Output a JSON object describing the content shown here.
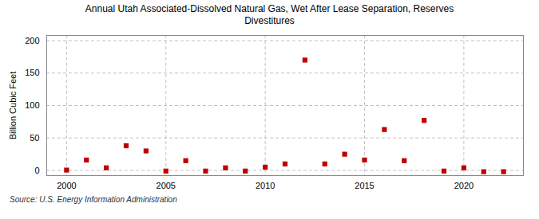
{
  "chart_data": {
    "type": "scatter",
    "title": "Annual Utah Associated-Dissolved Natural Gas, Wet After Lease Separation, Reserves\nDivestitures",
    "ylabel": "Billion Cubic Feet",
    "annotation": "Source: U.S. Energy Information Administration",
    "x": [
      2000,
      2001,
      2002,
      2003,
      2004,
      2005,
      2006,
      2007,
      2008,
      2009,
      2010,
      2011,
      2012,
      2013,
      2014,
      2015,
      2016,
      2017,
      2018,
      2019,
      2020,
      2021,
      2022
    ],
    "values": [
      0.5,
      16,
      4,
      38,
      30,
      -1,
      15,
      -1,
      4,
      -1,
      5,
      10,
      170,
      10,
      25,
      16,
      63,
      15,
      77,
      -1,
      4,
      -2,
      -2
    ],
    "color": "#c00000",
    "marker": "square",
    "xlim": [
      1999,
      2023
    ],
    "ylim": [
      -8,
      208
    ],
    "xticks": [
      2000,
      2005,
      2010,
      2015,
      2020
    ],
    "yticks": [
      0,
      50,
      100,
      150,
      200
    ],
    "grid": true
  }
}
